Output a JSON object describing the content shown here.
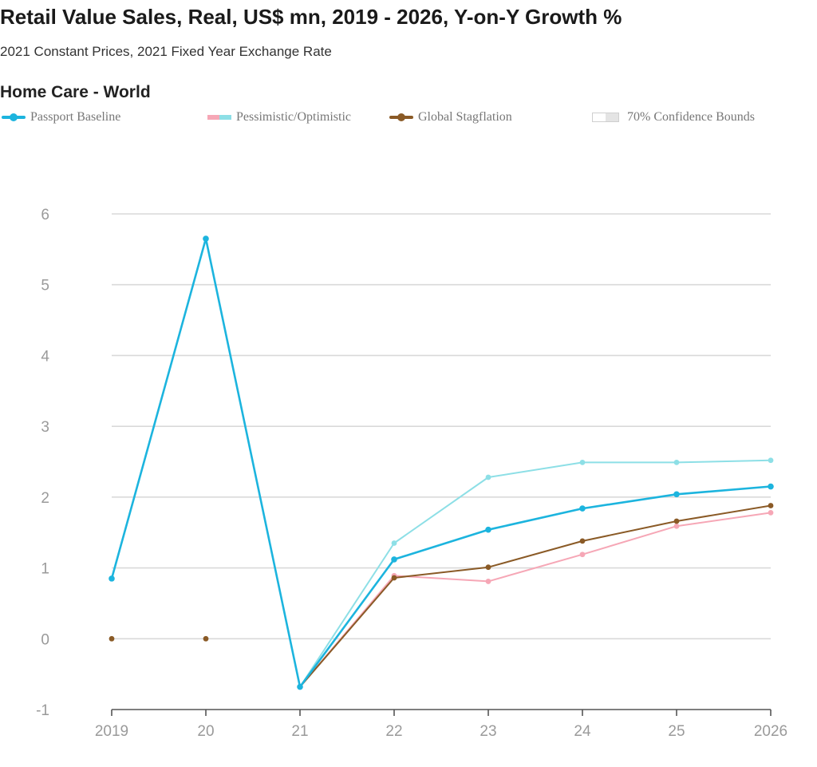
{
  "header": {
    "title": "Retail Value Sales, Real, US$ mn, 2019 - 2026, Y-on-Y Growth %",
    "subtitle": "2021 Constant Prices, 2021 Fixed Year Exchange Rate",
    "section": "Home Care - World"
  },
  "legend": {
    "baseline": "Passport Baseline",
    "pess_opt": "Pessimistic/Optimistic",
    "stagflation": "Global Stagflation",
    "bounds": "70% Confidence Bounds"
  },
  "colors": {
    "baseline": "#1cb4de",
    "optimistic": "#8ddfe6",
    "pessimistic": "#f6a7b6",
    "stagflation": "#8a5a26",
    "grid": "#d9d9d9",
    "axis": "#555555"
  },
  "chart_data": {
    "type": "line",
    "title": "Retail Value Sales, Real, US$ mn, 2019 - 2026, Y-on-Y Growth %",
    "xlabel": "",
    "ylabel": "",
    "categories": [
      "2019",
      "20",
      "21",
      "22",
      "23",
      "24",
      "25",
      "2026"
    ],
    "y_ticks": [
      -1,
      0,
      1,
      2,
      3,
      4,
      5,
      6
    ],
    "ylim": [
      -1,
      6
    ],
    "grid": true,
    "series": [
      {
        "name": "Optimistic",
        "key": "optimistic",
        "values": [
          null,
          null,
          -0.68,
          1.35,
          2.28,
          2.49,
          2.49,
          2.52
        ]
      },
      {
        "name": "Pessimistic",
        "key": "pessimistic",
        "values": [
          null,
          null,
          -0.68,
          0.89,
          0.81,
          1.19,
          1.59,
          1.78
        ]
      },
      {
        "name": "Global Stagflation",
        "key": "stagflation",
        "values": [
          0.0,
          0.0,
          -0.68,
          0.86,
          1.01,
          1.38,
          1.66,
          1.88
        ]
      },
      {
        "name": "Passport Baseline",
        "key": "baseline",
        "values": [
          0.85,
          5.65,
          -0.68,
          1.12,
          1.54,
          1.84,
          2.04,
          2.15
        ]
      }
    ]
  }
}
